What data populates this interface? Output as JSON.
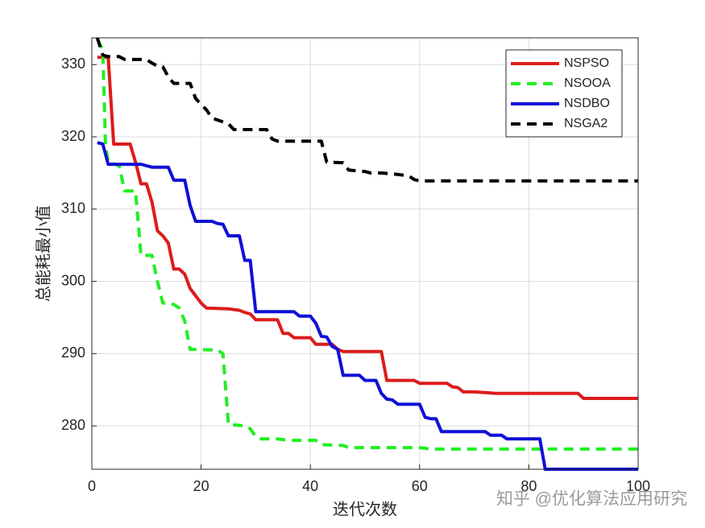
{
  "chart_data": {
    "type": "line",
    "xlabel": "迭代次数",
    "ylabel": "总能耗最小值",
    "watermark": "知乎 @优化算法应用研究",
    "xlim": [
      0,
      100
    ],
    "xticks": [
      0,
      20,
      40,
      60,
      80,
      100
    ],
    "ylim": [
      274,
      333.7
    ],
    "yticks": [
      280,
      290,
      300,
      310,
      320,
      330
    ],
    "grid": true,
    "legend": "upper-right",
    "series": [
      {
        "name": "NSPSO",
        "color": "#dd1c1c",
        "dash": "solid",
        "x": [
          1,
          3,
          4,
          7,
          8,
          9,
          10,
          11,
          12,
          13,
          14,
          15,
          16,
          17,
          18,
          19,
          20,
          21,
          25,
          27,
          28,
          29,
          30,
          34,
          35,
          36,
          37,
          40,
          41,
          44,
          45,
          46,
          53,
          54,
          59,
          60,
          65,
          66,
          67,
          68,
          70,
          72,
          74,
          89,
          90,
          100
        ],
        "values": [
          331,
          331,
          319,
          319,
          316.5,
          313.5,
          313.5,
          311,
          307,
          306.3,
          305.3,
          301.7,
          301.7,
          301,
          299,
          298,
          297,
          296.3,
          296.2,
          296,
          295.7,
          295.5,
          294.7,
          294.7,
          292.8,
          292.8,
          292.2,
          292.2,
          291.3,
          291.3,
          290.6,
          290.3,
          290.3,
          286.3,
          286.3,
          285.9,
          285.9,
          285.4,
          285.3,
          284.7,
          284.7,
          284.6,
          284.5,
          284.5,
          283.8,
          283.8
        ]
      },
      {
        "name": "NSOOA",
        "color": "#22ee22",
        "dash": "dashed",
        "x": [
          1,
          2,
          2.5,
          3,
          5,
          6,
          8,
          9,
          11,
          12,
          13,
          15,
          16,
          17,
          18,
          23,
          24,
          25,
          28,
          29,
          30,
          31,
          34,
          36,
          41,
          42,
          46,
          47,
          60,
          62,
          100
        ],
        "values": [
          333.5,
          332,
          319,
          316.5,
          316,
          312.5,
          312.5,
          303.6,
          303.6,
          300,
          297,
          296.8,
          296.3,
          294.5,
          290.6,
          290.5,
          290,
          280.2,
          280,
          279.6,
          278.5,
          278.2,
          278.2,
          278,
          278,
          277.4,
          277.3,
          277,
          277,
          276.8,
          276.8
        ]
      },
      {
        "name": "NSDBO",
        "color": "#1010d8",
        "dash": "solid",
        "x": [
          1,
          2,
          3,
          9,
          10,
          11,
          14,
          15,
          17,
          18,
          19,
          22,
          23,
          24,
          25,
          27,
          28,
          29,
          30,
          37,
          38,
          40,
          41,
          42,
          43,
          44,
          45,
          46,
          49,
          50,
          52,
          53,
          54,
          55,
          56,
          60,
          61,
          62,
          63,
          64,
          72,
          73,
          75,
          76,
          82,
          83,
          100
        ],
        "values": [
          319.2,
          319,
          316.2,
          316.2,
          316,
          315.8,
          315.8,
          314,
          314,
          310.5,
          308.3,
          308.3,
          308,
          307.9,
          306.3,
          306.3,
          302.9,
          302.9,
          295.8,
          295.8,
          295.2,
          295.2,
          294.2,
          292.4,
          292.3,
          291,
          290.6,
          287,
          287,
          286.3,
          286.3,
          284.5,
          283.7,
          283.6,
          283,
          283,
          281.2,
          281,
          281,
          279.2,
          279.2,
          278.7,
          278.7,
          278.2,
          278.2,
          274,
          274
        ]
      },
      {
        "name": "NSGA2",
        "color": "#000000",
        "dash": "dashed",
        "x": [
          1,
          2,
          3,
          5,
          6,
          10,
          11,
          12,
          13,
          14,
          15,
          18,
          19,
          20,
          21,
          22,
          25,
          26,
          32,
          33,
          34,
          42,
          43,
          46,
          47,
          50,
          51,
          53,
          56,
          58,
          59,
          60,
          100
        ],
        "values": [
          333.7,
          331.3,
          331.1,
          331.1,
          330.7,
          330.7,
          330.2,
          329.8,
          329.7,
          328.3,
          327.4,
          327.4,
          325.3,
          324.5,
          323.7,
          322.6,
          321.8,
          321,
          321,
          319.7,
          319.4,
          319.4,
          316.5,
          316.4,
          315.4,
          315.2,
          315,
          315,
          314.8,
          314.6,
          314.1,
          313.9,
          313.9
        ]
      }
    ]
  }
}
